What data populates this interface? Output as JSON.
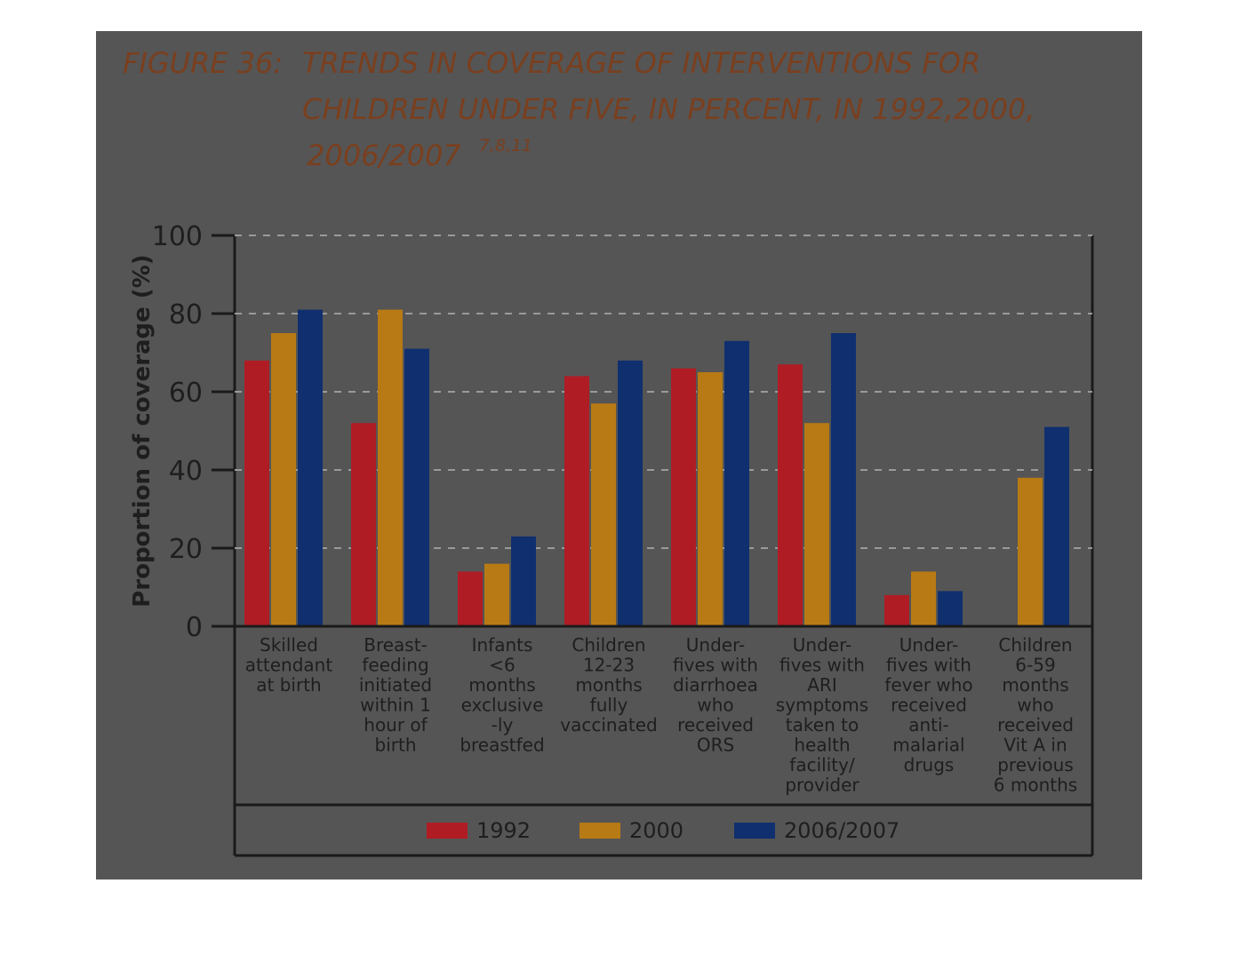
{
  "figure": {
    "caption_prefix": "FIGURE 36:",
    "caption_line1": "TRENDS IN COVERAGE OF INTERVENTIONS FOR",
    "caption_line2": "CHILDREN UNDER FIVE, IN PERCENT, IN 1992,2000,",
    "caption_line3": "2006/2007",
    "caption_refs": "7,8,11"
  },
  "colors": {
    "series_1992": "#b01c24",
    "series_2000": "#b87a14",
    "series_2006": "#0f2f6f",
    "axis": "#1a1a1a",
    "grid": "#9a9a9a",
    "caption": "#7a3f1e",
    "overlay": "#4c4c4c"
  },
  "chart_data": {
    "type": "bar",
    "title": "",
    "ylabel": "Proportion of coverage (%)",
    "xlabel": "",
    "ylim": [
      0,
      100
    ],
    "yticks": [
      0,
      20,
      40,
      60,
      80,
      100
    ],
    "grid": true,
    "legend_position": "bottom",
    "categories": [
      [
        "Skilled",
        "attendant",
        "at birth"
      ],
      [
        "Breast-",
        "feeding",
        "initiated",
        "within 1",
        "hour of",
        "birth"
      ],
      [
        "Infants",
        "<6",
        "months",
        "exclusive",
        "-ly",
        "breastfed"
      ],
      [
        "Children",
        "12-23",
        "months",
        "fully",
        "vaccinated"
      ],
      [
        "Under-",
        "fives with",
        "diarrhoea",
        "who",
        "received",
        "ORS"
      ],
      [
        "Under-",
        "fives with",
        "ARI",
        "symptoms",
        "taken to",
        "health",
        "facility/",
        "provider"
      ],
      [
        "Under-",
        "fives with",
        "fever who",
        "received",
        "anti-",
        "malarial",
        "drugs"
      ],
      [
        "Children",
        "6-59",
        "months",
        "who",
        "received",
        "Vit A in",
        "previous",
        "6 months"
      ]
    ],
    "series": [
      {
        "name": "1992",
        "values": [
          68,
          52,
          14,
          64,
          66,
          67,
          8,
          null
        ]
      },
      {
        "name": "2000",
        "values": [
          75,
          81,
          16,
          57,
          65,
          52,
          14,
          38
        ]
      },
      {
        "name": "2006/2007",
        "values": [
          81,
          71,
          23,
          68,
          73,
          75,
          9,
          51
        ]
      }
    ]
  }
}
